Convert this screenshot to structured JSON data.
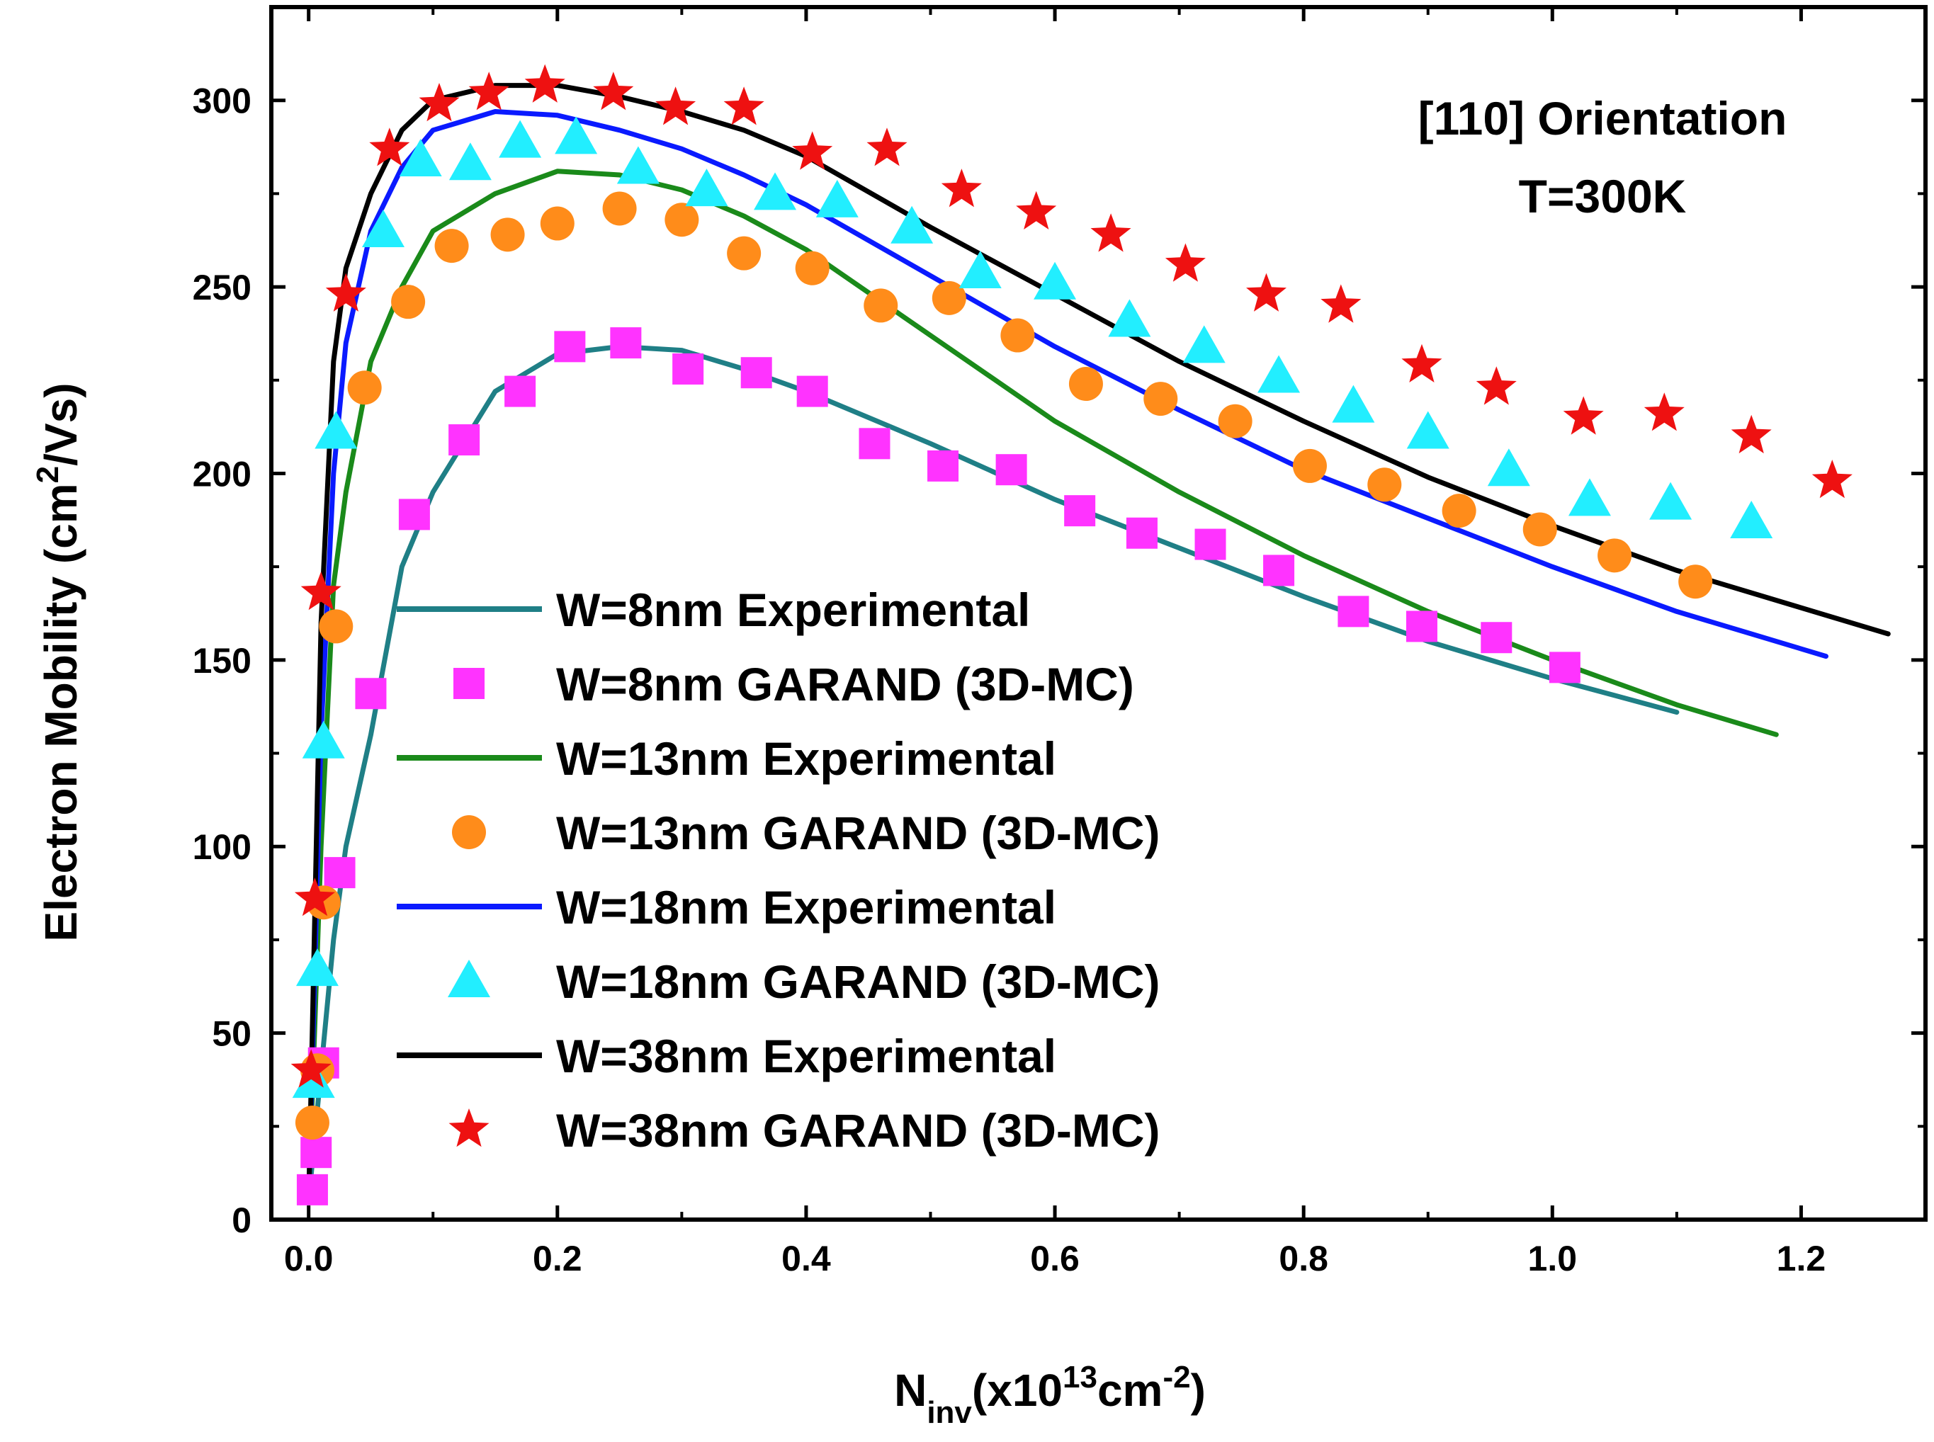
{
  "chart_data": {
    "type": "line",
    "title": "",
    "annotations": [
      "[110] Orientation",
      "T=300K"
    ],
    "xlabel": {
      "base": "N",
      "sub": "inv",
      "mid": "(x10",
      "sup": "13",
      "after": "cm",
      "sup2": "-2",
      "end": ")"
    },
    "ylabel": {
      "before": "Electron Mobility  (cm",
      "sup": "2",
      "after": "/Vs)"
    },
    "xlim": [
      -0.03,
      1.3
    ],
    "ylim": [
      0,
      325
    ],
    "x_ticks": [
      "0.0",
      "0.2",
      "0.4",
      "0.6",
      "0.8",
      "1.0",
      "1.2"
    ],
    "x_tick_values": [
      0,
      0.2,
      0.4,
      0.6,
      0.8,
      1.0,
      1.2
    ],
    "y_ticks": [
      "0",
      "50",
      "100",
      "150",
      "200",
      "250",
      "300"
    ],
    "y_tick_values": [
      0,
      50,
      100,
      150,
      200,
      250,
      300
    ],
    "grid": false,
    "legend_position": "lower-center",
    "series": [
      {
        "name": "W=8nm Experimental",
        "kind": "line",
        "color": "#1f7f86",
        "x": [
          0.0,
          0.01,
          0.02,
          0.03,
          0.05,
          0.075,
          0.1,
          0.15,
          0.2,
          0.25,
          0.3,
          0.35,
          0.4,
          0.5,
          0.6,
          0.7,
          0.8,
          0.9,
          1.0,
          1.1
        ],
        "y": [
          5,
          40,
          75,
          100,
          130,
          175,
          195,
          222,
          232,
          234,
          233,
          228,
          222,
          208,
          193,
          180,
          167,
          155,
          145,
          136
        ]
      },
      {
        "name": "W=8nm GARAND (3D-MC)",
        "kind": "marker",
        "marker": "square",
        "color": "#ff33ff",
        "x": [
          0.003,
          0.006,
          0.012,
          0.025,
          0.05,
          0.085,
          0.125,
          0.17,
          0.21,
          0.255,
          0.305,
          0.36,
          0.405,
          0.455,
          0.51,
          0.565,
          0.62,
          0.67,
          0.725,
          0.78,
          0.84,
          0.895,
          0.955,
          1.01
        ],
        "y": [
          8,
          18,
          42,
          93,
          141,
          189,
          209,
          222,
          234,
          235,
          228,
          227,
          222,
          208,
          202,
          201,
          190,
          184,
          181,
          174,
          163,
          159,
          156,
          148
        ]
      },
      {
        "name": "W=13nm Experimental",
        "kind": "line",
        "color": "#1a8a1a",
        "x": [
          0.0,
          0.01,
          0.02,
          0.03,
          0.05,
          0.075,
          0.1,
          0.15,
          0.2,
          0.25,
          0.3,
          0.35,
          0.4,
          0.5,
          0.6,
          0.7,
          0.8,
          0.9,
          1.0,
          1.1,
          1.18
        ],
        "y": [
          5,
          100,
          170,
          195,
          230,
          250,
          265,
          275,
          281,
          280,
          276,
          269,
          260,
          237,
          214,
          195,
          178,
          163,
          150,
          138,
          130
        ]
      },
      {
        "name": "W=13nm GARAND (3D-MC)",
        "kind": "marker",
        "marker": "circle",
        "color": "#ff8c1a",
        "x": [
          0.003,
          0.007,
          0.012,
          0.022,
          0.045,
          0.08,
          0.115,
          0.16,
          0.2,
          0.25,
          0.3,
          0.35,
          0.405,
          0.46,
          0.515,
          0.57,
          0.625,
          0.685,
          0.745,
          0.805,
          0.865,
          0.925,
          0.99,
          1.05,
          1.115
        ],
        "y": [
          26,
          40,
          85,
          159,
          223,
          246,
          261,
          264,
          267,
          271,
          268,
          259,
          255,
          245,
          247,
          237,
          224,
          220,
          214,
          202,
          197,
          190,
          185,
          178,
          171
        ]
      },
      {
        "name": "W=18nm Experimental",
        "kind": "line",
        "color": "#0a1aff",
        "x": [
          0.0,
          0.01,
          0.02,
          0.03,
          0.05,
          0.075,
          0.1,
          0.15,
          0.2,
          0.25,
          0.3,
          0.35,
          0.4,
          0.5,
          0.6,
          0.7,
          0.8,
          0.9,
          1.0,
          1.1,
          1.22
        ],
        "y": [
          5,
          130,
          200,
          235,
          265,
          282,
          292,
          297,
          296,
          292,
          287,
          280,
          272,
          253,
          234,
          217,
          201,
          188,
          175,
          163,
          151
        ]
      },
      {
        "name": "W=18nm GARAND (3D-MC)",
        "kind": "marker",
        "marker": "triangle",
        "color": "#22eeff",
        "x": [
          0.004,
          0.007,
          0.012,
          0.022,
          0.06,
          0.09,
          0.13,
          0.17,
          0.215,
          0.265,
          0.32,
          0.375,
          0.425,
          0.485,
          0.54,
          0.6,
          0.66,
          0.72,
          0.78,
          0.84,
          0.9,
          0.965,
          1.03,
          1.095,
          1.16
        ],
        "y": [
          37,
          67,
          128,
          211,
          265,
          284,
          283,
          289,
          290,
          282,
          276,
          275,
          273,
          266,
          254,
          251,
          241,
          234,
          226,
          218,
          211,
          201,
          193,
          192,
          187
        ]
      },
      {
        "name": "W=38nm Experimental",
        "kind": "line",
        "color": "#000000",
        "x": [
          0.0,
          0.01,
          0.02,
          0.03,
          0.05,
          0.075,
          0.1,
          0.15,
          0.2,
          0.25,
          0.3,
          0.35,
          0.4,
          0.5,
          0.6,
          0.7,
          0.8,
          0.9,
          1.0,
          1.1,
          1.2,
          1.27
        ],
        "y": [
          5,
          160,
          230,
          255,
          275,
          292,
          300,
          304,
          304,
          301,
          297,
          292,
          285,
          266,
          248,
          230,
          214,
          199,
          186,
          174,
          164,
          157
        ]
      },
      {
        "name": "W=38nm GARAND (3D-MC)",
        "kind": "marker",
        "marker": "star",
        "color": "#ee1111",
        "x": [
          0.002,
          0.005,
          0.01,
          0.03,
          0.065,
          0.105,
          0.145,
          0.19,
          0.245,
          0.295,
          0.35,
          0.405,
          0.465,
          0.525,
          0.585,
          0.645,
          0.705,
          0.77,
          0.83,
          0.895,
          0.955,
          1.025,
          1.09,
          1.16,
          1.225
        ],
        "y": [
          40,
          86,
          168,
          248,
          287,
          299,
          302,
          304,
          302,
          298,
          298,
          286,
          287,
          276,
          270,
          264,
          256,
          248,
          245,
          229,
          223,
          215,
          216,
          210,
          198
        ]
      }
    ]
  }
}
